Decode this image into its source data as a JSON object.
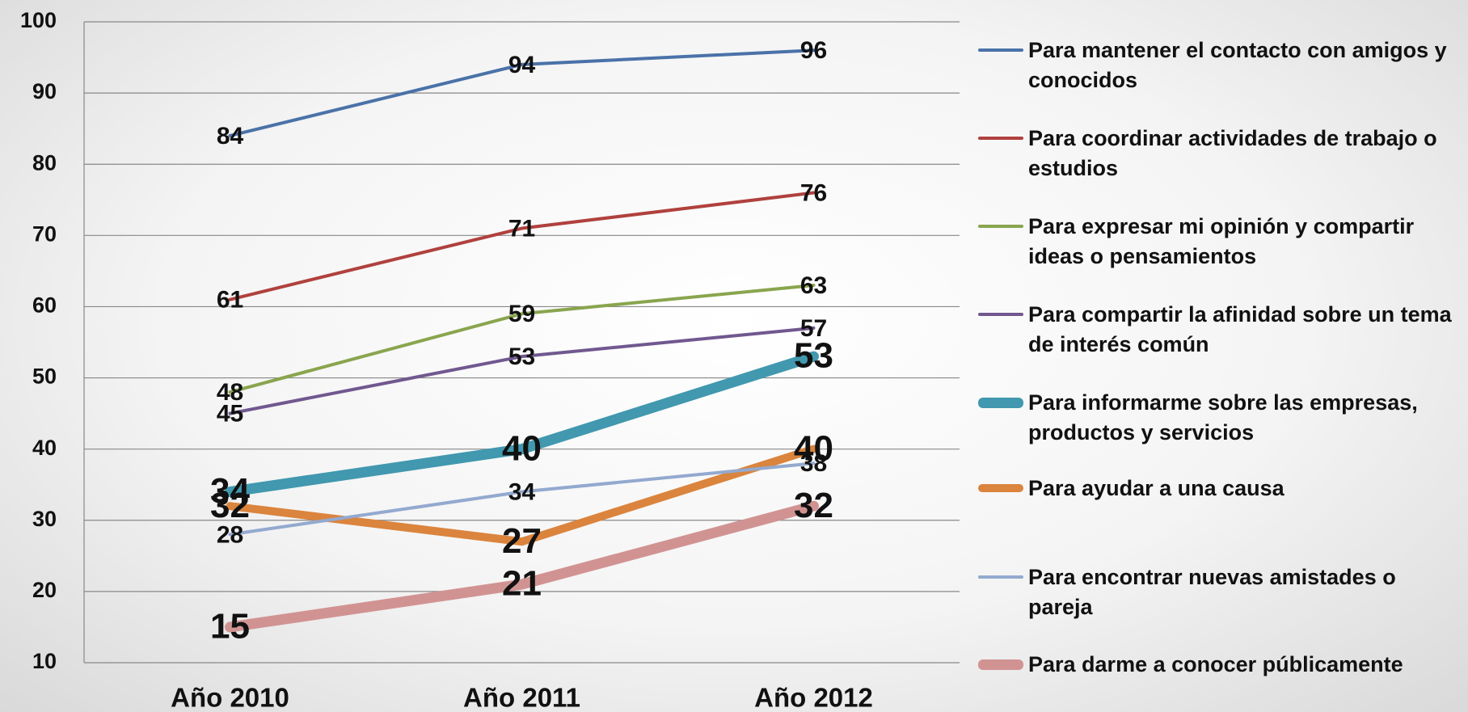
{
  "chart_data": {
    "type": "line",
    "categories": [
      "Año 2010",
      "Año 2011",
      "Año 2012"
    ],
    "ylim": [
      10,
      100
    ],
    "yticks": [
      10,
      20,
      30,
      40,
      50,
      60,
      70,
      80,
      90,
      100
    ],
    "grid": true,
    "legend": "right",
    "series": [
      {
        "name": "Para mantener el contacto con amigos y conocidos",
        "color": "#4a72a8",
        "line_width": 4,
        "values": [
          84,
          94,
          96
        ]
      },
      {
        "name": "Para coordinar actividades de trabajo o estudios",
        "color": "#b0413e",
        "line_width": 4,
        "values": [
          61,
          71,
          76
        ]
      },
      {
        "name": "Para expresar mi opinión y compartir ideas o pensamientos",
        "color": "#89a54e",
        "line_width": 4,
        "values": [
          48,
          59,
          63
        ]
      },
      {
        "name": "Para compartir la afinidad sobre un tema de interés común",
        "color": "#71588f",
        "line_width": 4,
        "values": [
          45,
          53,
          57
        ]
      },
      {
        "name": "Para informarme sobre las empresas, productos y servicios",
        "color": "#4198af",
        "line_width": 13,
        "values": [
          34,
          40,
          53
        ]
      },
      {
        "name": "Para ayudar a una causa",
        "color": "#db843d",
        "line_width": 10,
        "values": [
          32,
          27,
          40
        ]
      },
      {
        "name": "Para encontrar nuevas amistades o pareja",
        "color": "#93a9cf",
        "line_width": 4,
        "values": [
          28,
          34,
          38
        ]
      },
      {
        "name": "Para darme a conocer públicamente",
        "color": "#d19392",
        "line_width": 13,
        "values": [
          15,
          21,
          32
        ]
      }
    ]
  }
}
